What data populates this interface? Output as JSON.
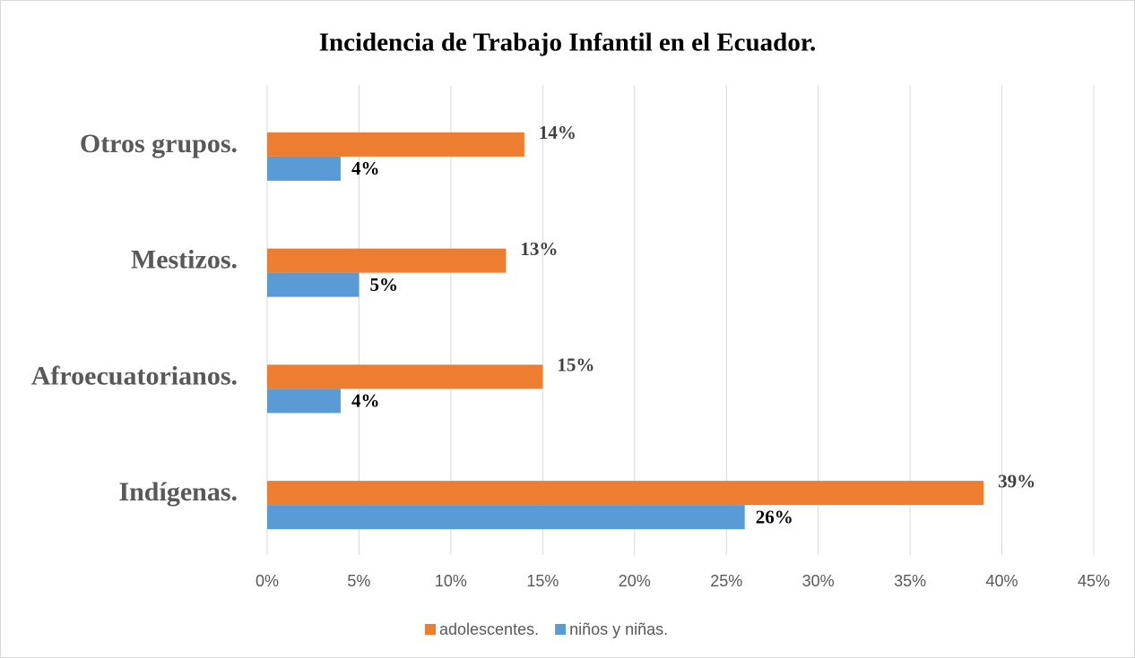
{
  "chart_data": {
    "type": "hbar",
    "title": "Incidencia de Trabajo Infantil en el Ecuador.",
    "categories": [
      "Indígenas.",
      "Afroecuatorianos.",
      "Mestizos.",
      "Otros grupos."
    ],
    "series": [
      {
        "name": "adolescentes.",
        "color": "#ed7d31",
        "values": [
          39,
          15,
          13,
          14
        ],
        "value_labels": [
          "39%",
          "15%",
          "13%",
          "14%"
        ]
      },
      {
        "name": "niños y niñas.",
        "color": "#5b9bd5",
        "values": [
          26,
          4,
          5,
          4
        ],
        "value_labels": [
          "26%",
          "4%",
          "5%",
          "4%"
        ]
      }
    ],
    "xlim": [
      0,
      45
    ],
    "xticks": [
      {
        "value": 0,
        "label": "0%"
      },
      {
        "value": 5,
        "label": "5%"
      },
      {
        "value": 10,
        "label": "10%"
      },
      {
        "value": 15,
        "label": "15%"
      },
      {
        "value": 20,
        "label": "20%"
      },
      {
        "value": 25,
        "label": "25%"
      },
      {
        "value": 30,
        "label": "30%"
      },
      {
        "value": 35,
        "label": "35%"
      },
      {
        "value": 40,
        "label": "40%"
      },
      {
        "value": 45,
        "label": "45%"
      }
    ],
    "grid": true,
    "legend": "bottom"
  }
}
